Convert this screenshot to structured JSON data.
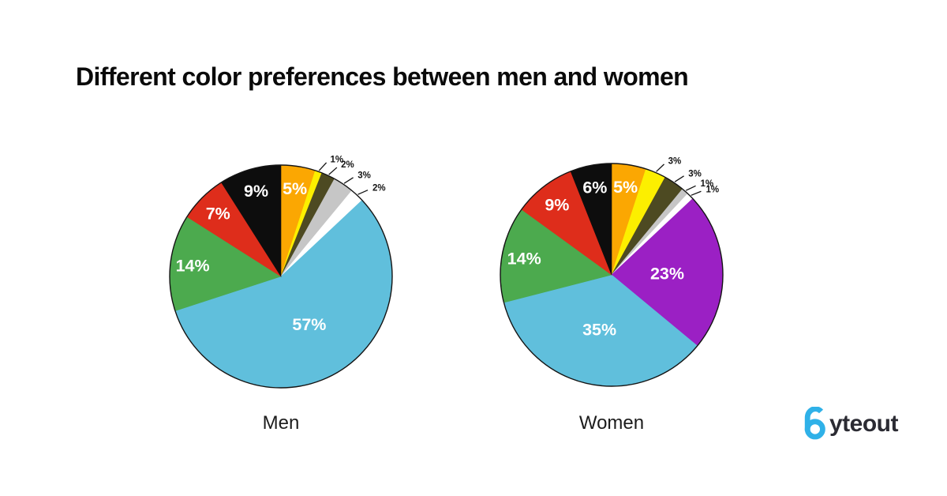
{
  "title": {
    "text": "Different color preferences between men and women",
    "color": "#0a0a0a"
  },
  "chart_data": [
    {
      "type": "pie",
      "title": "Men",
      "unit": "percent",
      "start_angle_deg": 0,
      "direction": "clockwise",
      "outline_color": "#141414",
      "slices": [
        {
          "name": "orange",
          "value": 5,
          "label": "5%",
          "color": "#FBA702"
        },
        {
          "name": "yellow",
          "value": 1,
          "label": "1%",
          "color": "#FCEF00"
        },
        {
          "name": "olive",
          "value": 2,
          "label": "2%",
          "color": "#4D4A22"
        },
        {
          "name": "gray",
          "value": 3,
          "label": "3%",
          "color": "#C6C6C6"
        },
        {
          "name": "white",
          "value": 2,
          "label": "2%",
          "color": "#FFFFFF"
        },
        {
          "name": "blue",
          "value": 57,
          "label": "57%",
          "color": "#60BFDC"
        },
        {
          "name": "green",
          "value": 14,
          "label": "14%",
          "color": "#4CAA4E"
        },
        {
          "name": "red",
          "value": 7,
          "label": "7%",
          "color": "#DE2D1B"
        },
        {
          "name": "black",
          "value": 9,
          "label": "9%",
          "color": "#0D0D0D"
        }
      ]
    },
    {
      "type": "pie",
      "title": "Women",
      "unit": "percent",
      "start_angle_deg": 0,
      "direction": "clockwise",
      "outline_color": "#141414",
      "slices": [
        {
          "name": "orange",
          "value": 5,
          "label": "5%",
          "color": "#FBA702"
        },
        {
          "name": "yellow",
          "value": 3,
          "label": "3%",
          "color": "#FCEF00"
        },
        {
          "name": "olive",
          "value": 3,
          "label": "3%",
          "color": "#4D4A22"
        },
        {
          "name": "gray",
          "value": 1,
          "label": "1%",
          "color": "#C6C6C6"
        },
        {
          "name": "white",
          "value": 1,
          "label": "1%",
          "color": "#FFFFFF"
        },
        {
          "name": "purple",
          "value": 23,
          "label": "23%",
          "color": "#9B20C4"
        },
        {
          "name": "blue",
          "value": 35,
          "label": "35%",
          "color": "#60BFDC"
        },
        {
          "name": "green",
          "value": 14,
          "label": "14%",
          "color": "#4CAA4E"
        },
        {
          "name": "red",
          "value": 9,
          "label": "9%",
          "color": "#DE2D1B"
        },
        {
          "name": "black",
          "value": 6,
          "label": "6%",
          "color": "#0D0D0D"
        }
      ]
    }
  ],
  "labels": {
    "inside_color": "#FFFFFF",
    "outside_color": "#141414"
  },
  "brand": {
    "name": "byteout",
    "rest": "yteout",
    "b_color": "#2FB1E8",
    "text_color": "#2B2B33"
  }
}
